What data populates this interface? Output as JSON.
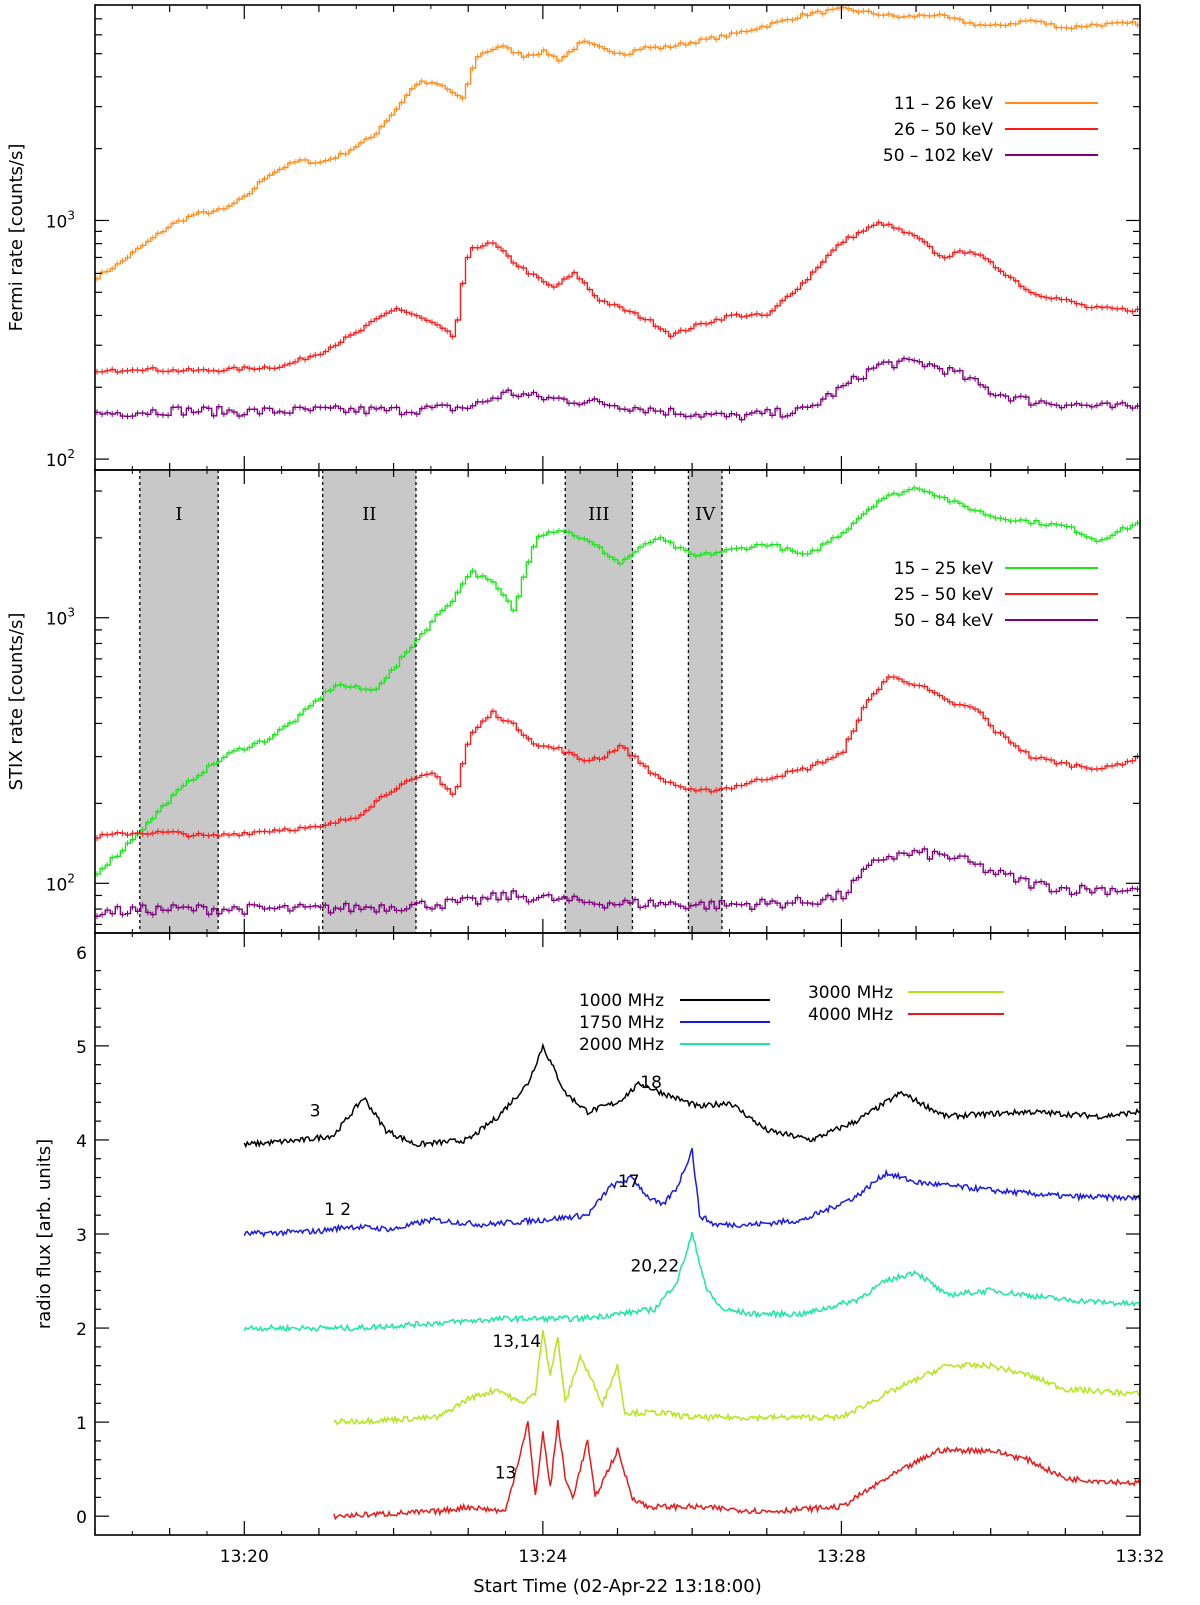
{
  "chart_data": [
    {
      "type": "line",
      "panel": "fermi",
      "ylabel": "Fermi rate [counts/s]",
      "yscale": "log",
      "ylim": [
        90,
        8000
      ],
      "y_ticks": [
        {
          "value": 100,
          "label": "10",
          "exp": "2"
        },
        {
          "value": 1000,
          "label": "10",
          "exp": "3"
        }
      ],
      "series": [
        {
          "name": "11 – 26 keV",
          "legend": "11 – 26 keV",
          "color": "#ff8c1a",
          "x": [
            0,
            0.3,
            0.7,
            1.0,
            1.3,
            1.7,
            2.0,
            2.3,
            2.7,
            3.0,
            3.3,
            3.7,
            4.0,
            4.3,
            4.6,
            4.9,
            5.1,
            5.4,
            5.7,
            6.0,
            6.2,
            6.5,
            6.8,
            7.1,
            7.3,
            7.6,
            8.0,
            8.5,
            9.0,
            9.5,
            10.0,
            10.5,
            10.8,
            11.2,
            11.7,
            12.0,
            12.5,
            13.0,
            13.3,
            14.0
          ],
          "y": [
            580,
            660,
            820,
            960,
            1060,
            1110,
            1260,
            1560,
            1780,
            1750,
            1900,
            2250,
            2900,
            3800,
            3700,
            3200,
            4900,
            5400,
            4900,
            5100,
            4700,
            5600,
            5200,
            5000,
            5300,
            5300,
            5600,
            6000,
            6600,
            7300,
            7700,
            7300,
            7100,
            7300,
            6700,
            6500,
            6900,
            6400,
            6600,
            6700
          ]
        },
        {
          "name": "26 – 50 keV",
          "legend": "26 – 50 keV",
          "color": "#ff1a1a",
          "x": [
            0,
            0.5,
            1.0,
            1.5,
            2.0,
            2.5,
            3.0,
            3.5,
            4.0,
            4.5,
            4.8,
            5.0,
            5.3,
            5.6,
            5.8,
            6.1,
            6.4,
            6.7,
            7.0,
            7.4,
            7.7,
            8.0,
            8.5,
            9.0,
            9.5,
            10.0,
            10.5,
            11.0,
            11.3,
            11.7,
            12.0,
            12.5,
            13.0,
            13.3,
            14.0
          ],
          "y": [
            230,
            240,
            235,
            235,
            240,
            245,
            280,
            340,
            430,
            370,
            320,
            770,
            800,
            660,
            600,
            520,
            600,
            470,
            430,
            380,
            330,
            360,
            400,
            400,
            560,
            820,
            980,
            840,
            700,
            750,
            650,
            500,
            460,
            430,
            420
          ]
        },
        {
          "name": "50 – 102 keV",
          "legend": "50 – 102 keV",
          "color": "#800080",
          "x": [
            0,
            1,
            2,
            3,
            4,
            5,
            5.5,
            6,
            6.5,
            7,
            7.5,
            8,
            8.5,
            9,
            9.5,
            10,
            10.5,
            11,
            11.5,
            12,
            12.5,
            13,
            13.5,
            14
          ],
          "y": [
            155,
            160,
            158,
            160,
            160,
            165,
            190,
            180,
            175,
            168,
            160,
            155,
            150,
            155,
            160,
            200,
            250,
            255,
            230,
            190,
            175,
            170,
            165,
            165
          ],
          "noisy": true
        }
      ],
      "legend_position": "upper-right"
    },
    {
      "type": "line",
      "panel": "stix",
      "ylabel": "STIX rate [counts/s]",
      "yscale": "log",
      "ylim": [
        65,
        3600
      ],
      "y_ticks": [
        {
          "value": 100,
          "label": "10",
          "exp": "2"
        },
        {
          "value": 1000,
          "label": "10",
          "exp": "3"
        }
      ],
      "series": [
        {
          "name": "15 – 25 keV",
          "legend": "15 – 25 keV",
          "color": "#1ae61a",
          "x": [
            0,
            0.3,
            0.7,
            1.0,
            1.3,
            1.8,
            2.3,
            2.7,
            3.2,
            3.7,
            4.0,
            4.4,
            4.8,
            5.0,
            5.3,
            5.6,
            5.9,
            6.2,
            6.4,
            6.7,
            7.0,
            7.5,
            8.0,
            8.5,
            9.0,
            9.5,
            10.0,
            10.5,
            11.0,
            11.5,
            12.0,
            12.5,
            13.0,
            13.4,
            14.0
          ],
          "y": [
            110,
            130,
            170,
            210,
            250,
            310,
            350,
            420,
            560,
            530,
            650,
            900,
            1200,
            1500,
            1350,
            1050,
            2050,
            2150,
            2050,
            1850,
            1600,
            2000,
            1700,
            1800,
            1900,
            1700,
            2100,
            2800,
            3100,
            2700,
            2400,
            2300,
            2200,
            1950,
            2300
          ]
        },
        {
          "name": "25 – 50 keV",
          "legend": "25 – 50 keV",
          "color": "#ff1a1a",
          "x": [
            0,
            0.5,
            1.0,
            1.5,
            2.0,
            2.5,
            3.0,
            3.5,
            4.0,
            4.5,
            4.8,
            5.0,
            5.3,
            5.6,
            5.9,
            6.2,
            6.5,
            6.8,
            7.0,
            7.5,
            8.0,
            8.5,
            9.0,
            9.5,
            10.0,
            10.3,
            10.6,
            11.0,
            11.4,
            11.8,
            12.0,
            12.5,
            13.0,
            13.5,
            14.0
          ],
          "y": [
            150,
            155,
            155,
            150,
            155,
            160,
            162,
            180,
            230,
            260,
            210,
            360,
            440,
            390,
            330,
            320,
            290,
            300,
            330,
            250,
            220,
            230,
            250,
            270,
            310,
            470,
            600,
            560,
            480,
            450,
            380,
            300,
            280,
            270,
            300
          ]
        },
        {
          "name": "50 – 84 keV",
          "legend": "50 – 84 keV",
          "color": "#800080",
          "x": [
            0,
            1,
            2,
            3,
            4,
            5,
            5.5,
            6,
            6.5,
            7,
            7.5,
            8,
            8.5,
            9,
            9.5,
            10,
            10.5,
            11,
            11.5,
            12,
            12.5,
            13,
            13.5,
            14
          ],
          "y": [
            78,
            80,
            80,
            80,
            82,
            85,
            90,
            88,
            85,
            84,
            84,
            83,
            83,
            84,
            85,
            90,
            125,
            130,
            125,
            110,
            100,
            95,
            95,
            95
          ],
          "noisy": true
        }
      ],
      "intervals": [
        {
          "label": "I",
          "x0": 0.6,
          "x1": 1.65
        },
        {
          "label": "II",
          "x0": 3.05,
          "x1": 4.3
        },
        {
          "label": "III",
          "x0": 6.3,
          "x1": 7.2
        },
        {
          "label": "IV",
          "x0": 7.95,
          "x1": 8.4
        }
      ],
      "legend_position": "upper-right"
    },
    {
      "type": "line",
      "panel": "radio",
      "ylabel": "radio flux [arb. units]",
      "yscale": "linear",
      "ylim": [
        -0.2,
        6.2
      ],
      "y_ticks": [
        {
          "value": 0,
          "label": "0"
        },
        {
          "value": 1,
          "label": "1"
        },
        {
          "value": 2,
          "label": "2"
        },
        {
          "value": 3,
          "label": "3"
        },
        {
          "value": 4,
          "label": "4"
        },
        {
          "value": 5,
          "label": "5"
        },
        {
          "value": 6,
          "label": "6"
        }
      ],
      "xlabel": "Start Time (02-Apr-22 13:18:00)",
      "xlim": [
        0,
        14
      ],
      "x_ticks": [
        {
          "value": 2,
          "label": "13:20"
        },
        {
          "value": 6,
          "label": "13:24"
        },
        {
          "value": 10,
          "label": "13:28"
        },
        {
          "value": 14,
          "label": "13:32"
        }
      ],
      "series": [
        {
          "name": "1000 MHz",
          "legend": "1000 MHz",
          "color": "#000000",
          "x": [
            2.0,
            2.8,
            3.2,
            3.6,
            3.9,
            4.3,
            5.0,
            5.4,
            5.8,
            6.0,
            6.3,
            6.6,
            7.0,
            7.3,
            7.6,
            8.1,
            8.5,
            9.0,
            9.6,
            10.2,
            10.8,
            11.4,
            12.5,
            13.5,
            14.0
          ],
          "y": [
            3.95,
            4.0,
            4.05,
            4.45,
            4.1,
            3.95,
            4.0,
            4.25,
            4.6,
            5.0,
            4.5,
            4.3,
            4.4,
            4.6,
            4.5,
            4.35,
            4.4,
            4.1,
            4.0,
            4.2,
            4.5,
            4.25,
            4.3,
            4.25,
            4.3
          ]
        },
        {
          "name": "1750 MHz",
          "legend": "1750 MHz",
          "color": "#1a1ae6",
          "x": [
            2.0,
            3.0,
            3.4,
            4.0,
            4.5,
            5.2,
            6.0,
            6.6,
            6.9,
            7.2,
            7.4,
            7.6,
            7.8,
            8.0,
            8.1,
            8.3,
            8.8,
            9.5,
            10.2,
            10.6,
            11.0,
            11.6,
            12.2,
            13.0,
            14.0
          ],
          "y": [
            3.0,
            3.03,
            3.08,
            3.05,
            3.15,
            3.1,
            3.15,
            3.2,
            3.5,
            3.6,
            3.4,
            3.3,
            3.5,
            3.9,
            3.2,
            3.1,
            3.1,
            3.15,
            3.4,
            3.65,
            3.55,
            3.5,
            3.45,
            3.4,
            3.38
          ]
        },
        {
          "name": "2000 MHz",
          "legend": "2000 MHz",
          "color": "#1ae6a6",
          "x": [
            2.0,
            3.5,
            4.5,
            5.5,
            6.5,
            7.0,
            7.5,
            7.8,
            8.0,
            8.2,
            8.4,
            8.8,
            9.5,
            10.2,
            10.6,
            11.0,
            11.4,
            12.0,
            13.0,
            14.0
          ],
          "y": [
            2.0,
            2.0,
            2.05,
            2.1,
            2.1,
            2.15,
            2.2,
            2.5,
            3.0,
            2.4,
            2.2,
            2.15,
            2.15,
            2.3,
            2.5,
            2.6,
            2.35,
            2.4,
            2.3,
            2.25
          ]
        },
        {
          "name": "3000 MHz",
          "legend": "3000 MHz",
          "color": "#b3e61a",
          "x": [
            3.2,
            4.6,
            5.0,
            5.4,
            5.7,
            5.9,
            6.0,
            6.1,
            6.2,
            6.3,
            6.5,
            6.8,
            7.0,
            7.1,
            7.4,
            7.6,
            8.0,
            9.0,
            10.0,
            10.6,
            11.4,
            12.0,
            12.5,
            13.0,
            14.0
          ],
          "y": [
            1.0,
            1.05,
            1.25,
            1.35,
            1.2,
            1.3,
            2.0,
            1.5,
            1.9,
            1.2,
            1.7,
            1.2,
            1.6,
            1.1,
            1.1,
            1.1,
            1.05,
            1.05,
            1.05,
            1.3,
            1.6,
            1.6,
            1.5,
            1.35,
            1.3
          ]
        },
        {
          "name": "4000 MHz",
          "legend": "4000 MHz",
          "color": "#e61a1a",
          "x": [
            3.2,
            4.6,
            5.0,
            5.5,
            5.8,
            5.9,
            6.0,
            6.1,
            6.2,
            6.3,
            6.4,
            6.6,
            6.7,
            7.0,
            7.2,
            7.4,
            8.0,
            9.0,
            10.0,
            10.6,
            11.3,
            12.0,
            12.5,
            13.0,
            14.0
          ],
          "y": [
            0.0,
            0.05,
            0.1,
            0.05,
            1.0,
            0.2,
            0.9,
            0.3,
            1.0,
            0.4,
            0.2,
            0.8,
            0.2,
            0.7,
            0.2,
            0.1,
            0.1,
            0.05,
            0.1,
            0.4,
            0.7,
            0.7,
            0.6,
            0.4,
            0.35
          ]
        }
      ],
      "annotations": [
        {
          "text": "3",
          "x": 2.95,
          "y": 4.25
        },
        {
          "text": "18",
          "x": 7.45,
          "y": 4.55
        },
        {
          "text": "1 2",
          "x": 3.25,
          "y": 3.2
        },
        {
          "text": "17",
          "x": 7.15,
          "y": 3.5
        },
        {
          "text": "20,22",
          "x": 7.5,
          "y": 2.6
        },
        {
          "text": "13,14",
          "x": 5.65,
          "y": 1.8
        },
        {
          "text": "13",
          "x": 5.5,
          "y": 0.4
        }
      ],
      "legend_position": "top-center"
    }
  ]
}
